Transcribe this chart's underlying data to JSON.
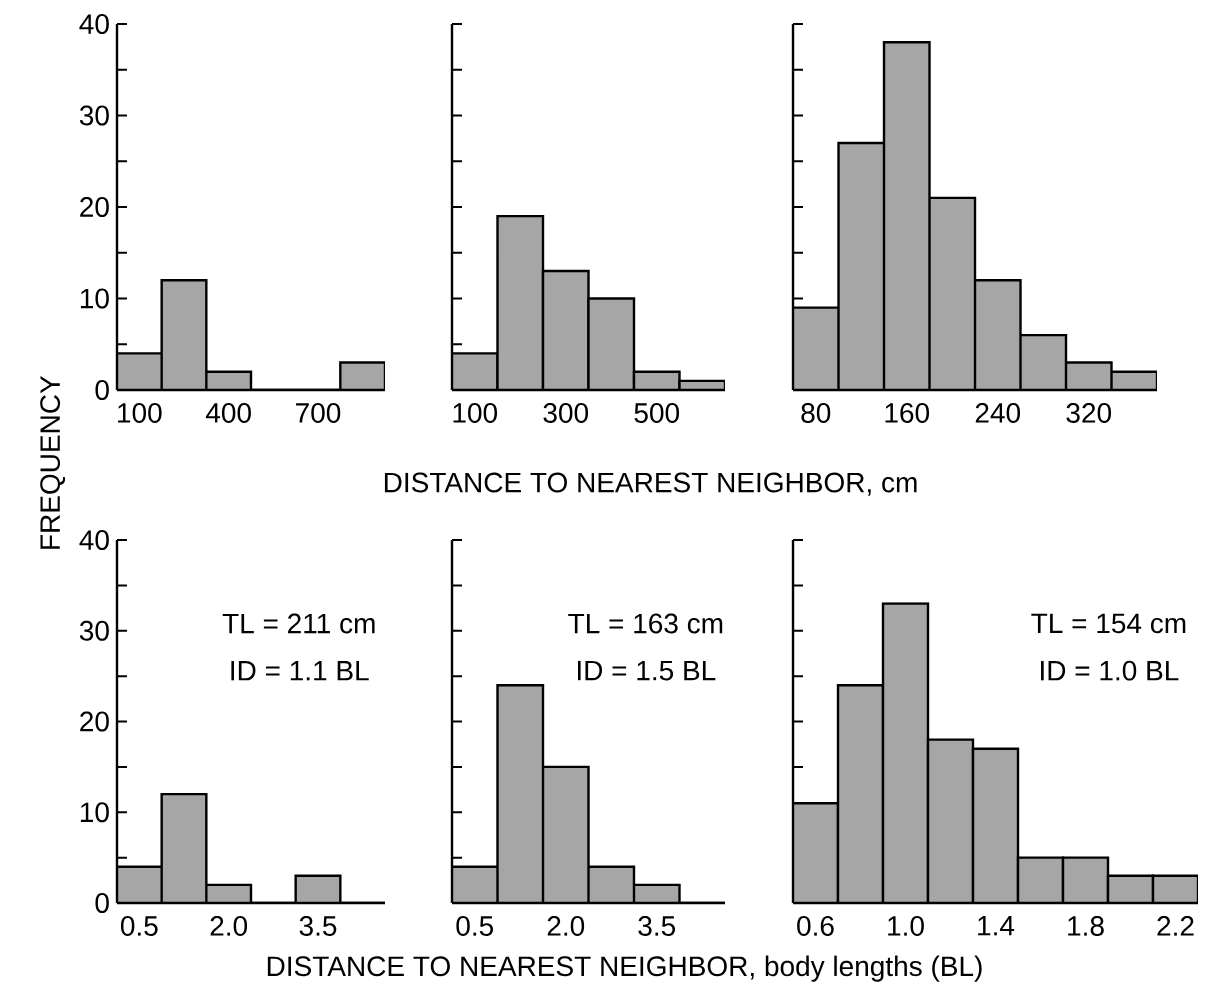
{
  "chart_data": [
    {
      "type": "histogram",
      "ylabel": "FREQUENCY",
      "bins": [
        25,
        175,
        325,
        475,
        625,
        775,
        925
      ],
      "values": [
        4,
        12,
        2,
        0,
        0,
        3
      ],
      "color": "#a6a6a6",
      "xlim": [
        25,
        925
      ],
      "xticks": [
        100,
        400,
        700
      ],
      "ylim": [
        0,
        40
      ],
      "yticks": [
        0,
        {
          "value": 5,
          "label": null
        },
        10,
        {
          "value": 15,
          "label": null
        },
        20,
        {
          "value": 25,
          "label": null
        },
        30,
        {
          "value": 35,
          "label": null
        },
        40
      ]
    },
    {
      "type": "histogram",
      "xlabel": "DISTANCE TO NEAREST NEIGHBOR, cm",
      "bins": [
        50,
        150,
        250,
        350,
        450,
        550,
        650
      ],
      "values": [
        4,
        19,
        13,
        10,
        2,
        1
      ],
      "color": "#a6a6a6",
      "xlim": [
        50,
        650
      ],
      "xticks": [
        100,
        300,
        500
      ],
      "ylim": [
        0,
        40
      ],
      "yticks": [
        0,
        5,
        10,
        15,
        20,
        25,
        30,
        35,
        40
      ],
      "tick_labels": "x"
    },
    {
      "type": "histogram",
      "bins": [
        60,
        100,
        140,
        180,
        220,
        260,
        300,
        340,
        380
      ],
      "values": [
        9,
        27,
        38,
        21,
        12,
        6,
        3,
        2
      ],
      "color": "#a6a6a6",
      "xlim": [
        60,
        380
      ],
      "xticks": [
        80,
        160,
        240,
        320
      ],
      "ylim": [
        0,
        40
      ],
      "yticks": [
        0,
        5,
        10,
        15,
        20,
        25,
        30,
        35,
        40
      ],
      "tick_labels": "x"
    },
    {
      "type": "histogram",
      "bins": [
        0.125,
        0.875,
        1.625,
        2.375,
        3.125,
        3.875,
        4.625
      ],
      "values": [
        4,
        12,
        2,
        0,
        3,
        0
      ],
      "color": "#a6a6a6",
      "xlim": [
        0.125,
        4.625
      ],
      "xticks": [
        {
          "value": 0.5,
          "label": "0.5"
        },
        {
          "value": 2,
          "label": "2.0"
        },
        {
          "value": 3.5,
          "label": "3.5"
        }
      ],
      "ylim": [
        0,
        40
      ],
      "yticks": [
        0,
        {
          "value": 5,
          "label": null
        },
        10,
        {
          "value": 15,
          "label": null
        },
        20,
        {
          "value": 25,
          "label": null
        },
        30,
        {
          "value": 35,
          "label": null
        },
        40
      ],
      "annotations": [
        "TL = 211 cm",
        "ID = 1.1 BL"
      ]
    },
    {
      "type": "histogram",
      "xlabel": "DISTANCE TO NEAREST NEIGHBOR, body lengths (BL)",
      "bins": [
        0.125,
        0.875,
        1.625,
        2.375,
        3.125,
        3.875,
        4.625
      ],
      "values": [
        4,
        24,
        15,
        4,
        2,
        0
      ],
      "color": "#a6a6a6",
      "xlim": [
        0.125,
        4.625
      ],
      "xticks": [
        {
          "value": 0.5,
          "label": "0.5"
        },
        {
          "value": 2,
          "label": "2.0"
        },
        {
          "value": 3.5,
          "label": "3.5"
        }
      ],
      "ylim": [
        0,
        40
      ],
      "yticks": [
        0,
        5,
        10,
        15,
        20,
        25,
        30,
        35,
        40
      ],
      "tick_labels": "x",
      "annotations": [
        "TL = 163 cm",
        "ID = 1.5 BL"
      ]
    },
    {
      "type": "histogram",
      "bins": [
        0.5,
        0.7,
        0.9,
        1.1,
        1.3,
        1.5,
        1.7,
        1.9,
        2.1,
        2.3
      ],
      "values": [
        11,
        24,
        33,
        18,
        17,
        5,
        5,
        3,
        3
      ],
      "color": "#a6a6a6",
      "xlim": [
        0.5,
        2.3
      ],
      "xticks": [
        {
          "value": 0.6,
          "label": "0.6"
        },
        {
          "value": 1,
          "label": "1.0"
        },
        {
          "value": 1.4,
          "label": "1.4"
        },
        {
          "value": 1.8,
          "label": "1.8"
        },
        {
          "value": 2.2,
          "label": "2.2"
        }
      ],
      "ylim": [
        0,
        40
      ],
      "yticks": [
        0,
        5,
        10,
        15,
        20,
        25,
        30,
        35,
        40
      ],
      "tick_labels": "x",
      "annotations": [
        "TL = 154 cm",
        "ID = 1.0 BL"
      ]
    }
  ]
}
